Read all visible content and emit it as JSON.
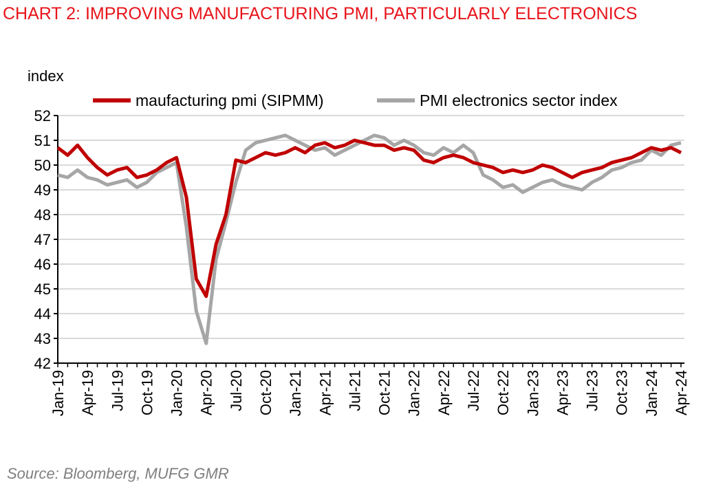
{
  "chart_data": {
    "type": "line",
    "title": "CHART 2: IMPROVING MANUFACTURING PMI, PARTICULARLY ELECTRONICS",
    "ylabel": "index",
    "ylim": [
      42,
      52
    ],
    "yticks": [
      42,
      43,
      44,
      45,
      46,
      47,
      48,
      49,
      50,
      51,
      52
    ],
    "grid": true,
    "legend_position": "top",
    "x": [
      "Jan-19",
      "Feb-19",
      "Mar-19",
      "Apr-19",
      "May-19",
      "Jun-19",
      "Jul-19",
      "Aug-19",
      "Sep-19",
      "Oct-19",
      "Nov-19",
      "Dec-19",
      "Jan-20",
      "Feb-20",
      "Mar-20",
      "Apr-20",
      "May-20",
      "Jun-20",
      "Jul-20",
      "Aug-20",
      "Sep-20",
      "Oct-20",
      "Nov-20",
      "Dec-20",
      "Jan-21",
      "Feb-21",
      "Mar-21",
      "Apr-21",
      "May-21",
      "Jun-21",
      "Jul-21",
      "Aug-21",
      "Sep-21",
      "Oct-21",
      "Nov-21",
      "Dec-21",
      "Jan-22",
      "Feb-22",
      "Mar-22",
      "Apr-22",
      "May-22",
      "Jun-22",
      "Jul-22",
      "Aug-22",
      "Sep-22",
      "Oct-22",
      "Nov-22",
      "Dec-22",
      "Jan-23",
      "Feb-23",
      "Mar-23",
      "Apr-23",
      "May-23",
      "Jun-23",
      "Jul-23",
      "Aug-23",
      "Sep-23",
      "Oct-23",
      "Nov-23",
      "Dec-23",
      "Jan-24",
      "Feb-24",
      "Mar-24",
      "Apr-24"
    ],
    "xtick_labels": [
      "Jan-19",
      "Apr-19",
      "Jul-19",
      "Oct-19",
      "Jan-20",
      "Apr-20",
      "Jul-20",
      "Oct-20",
      "Jan-21",
      "Apr-21",
      "Jul-21",
      "Oct-21",
      "Jan-22",
      "Apr-22",
      "Jul-22",
      "Oct-22",
      "Jan-23",
      "Apr-23",
      "Jul-23",
      "Oct-23",
      "Jan-24",
      "Apr-24"
    ],
    "series": [
      {
        "name": "maufacturing pmi (SIPMM)",
        "color": "#c00000",
        "values": [
          50.7,
          50.4,
          50.8,
          50.3,
          49.9,
          49.6,
          49.8,
          49.9,
          49.5,
          49.6,
          49.8,
          50.1,
          50.3,
          48.7,
          45.4,
          44.7,
          46.8,
          48.0,
          50.2,
          50.1,
          50.3,
          50.5,
          50.4,
          50.5,
          50.7,
          50.5,
          50.8,
          50.9,
          50.7,
          50.8,
          51.0,
          50.9,
          50.8,
          50.8,
          50.6,
          50.7,
          50.6,
          50.2,
          50.1,
          50.3,
          50.4,
          50.3,
          50.1,
          50.0,
          49.9,
          49.7,
          49.8,
          49.7,
          49.8,
          50.0,
          49.9,
          49.7,
          49.5,
          49.7,
          49.8,
          49.9,
          50.1,
          50.2,
          50.3,
          50.5,
          50.7,
          50.6,
          50.7,
          50.5
        ]
      },
      {
        "name": "PMI electronics sector index",
        "color": "#a6a6a6",
        "values": [
          49.6,
          49.5,
          49.8,
          49.5,
          49.4,
          49.2,
          49.3,
          49.4,
          49.1,
          49.3,
          49.7,
          49.9,
          50.1,
          47.5,
          44.1,
          42.8,
          46.2,
          47.7,
          49.3,
          50.6,
          50.9,
          51.0,
          51.1,
          51.2,
          51.0,
          50.8,
          50.6,
          50.7,
          50.4,
          50.6,
          50.8,
          51.0,
          51.2,
          51.1,
          50.8,
          51.0,
          50.8,
          50.5,
          50.4,
          50.7,
          50.5,
          50.8,
          50.5,
          49.6,
          49.4,
          49.1,
          49.2,
          48.9,
          49.1,
          49.3,
          49.4,
          49.2,
          49.1,
          49.0,
          49.3,
          49.5,
          49.8,
          49.9,
          50.1,
          50.2,
          50.6,
          50.4,
          50.8,
          50.9
        ]
      }
    ],
    "source": "Source: Bloomberg, MUFG GMR"
  }
}
